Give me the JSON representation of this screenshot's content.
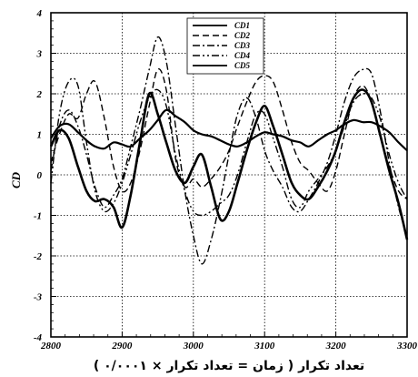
{
  "chart_data": {
    "type": "line",
    "title": "",
    "xlabel": "تعداد تکرار ( زمان = تعداد تکرار × ۰/۰۰۰۱ )",
    "ylabel": "CD",
    "xlim": [
      2800,
      3300
    ],
    "ylim": [
      -4,
      4
    ],
    "xticks": [
      "2800",
      "2900",
      "3000",
      "3100",
      "3200",
      "3300"
    ],
    "yticks": [
      "-4",
      "-3",
      "-2",
      "-1",
      "0",
      "1",
      "2",
      "3",
      "4"
    ],
    "grid": true,
    "legend_position": "top-center",
    "series": [
      {
        "name": "CD1",
        "style": "solid",
        "width": 2.2,
        "x": [
          2800,
          2812,
          2825,
          2838,
          2850,
          2862,
          2875,
          2888,
          2900,
          2912,
          2925,
          2938,
          2950,
          2962,
          2975,
          2988,
          3000,
          3012,
          3025,
          3038,
          3050,
          3062,
          3075,
          3088,
          3100,
          3112,
          3125,
          3138,
          3150,
          3162,
          3175,
          3188,
          3200,
          3212,
          3225,
          3238,
          3250,
          3262,
          3275,
          3288,
          3300
        ],
        "y": [
          0.9,
          1.2,
          1.25,
          1.05,
          0.85,
          0.7,
          0.65,
          0.8,
          0.75,
          0.7,
          0.9,
          1.1,
          1.35,
          1.6,
          1.45,
          1.3,
          1.1,
          1.0,
          0.95,
          0.85,
          0.75,
          0.7,
          0.8,
          0.95,
          1.05,
          1.0,
          0.95,
          0.85,
          0.8,
          0.7,
          0.85,
          1.0,
          1.1,
          1.25,
          1.35,
          1.3,
          1.3,
          1.2,
          1.05,
          0.8,
          0.6
        ]
      },
      {
        "name": "CD2",
        "style": "dashed",
        "width": 1.4,
        "x": [
          2800,
          2812,
          2825,
          2838,
          2850,
          2862,
          2875,
          2888,
          2900,
          2912,
          2925,
          2938,
          2950,
          2962,
          2975,
          2988,
          3000,
          3012,
          3025,
          3038,
          3050,
          3062,
          3075,
          3088,
          3100,
          3112,
          3125,
          3138,
          3150,
          3162,
          3175,
          3188,
          3200,
          3212,
          3225,
          3238,
          3250,
          3262,
          3275,
          3288,
          3300
        ],
        "y": [
          0.3,
          1.0,
          1.5,
          1.4,
          2.0,
          2.3,
          1.4,
          0.2,
          -0.4,
          -0.2,
          0.6,
          1.7,
          2.6,
          2.1,
          0.4,
          -0.3,
          -0.1,
          -0.3,
          -0.1,
          0.2,
          0.6,
          1.2,
          1.8,
          2.3,
          2.45,
          2.3,
          1.6,
          0.8,
          0.3,
          0.1,
          -0.2,
          -0.4,
          0.1,
          1.0,
          1.9,
          2.2,
          1.8,
          1.0,
          0.2,
          -0.4,
          -0.6
        ]
      },
      {
        "name": "CD3",
        "style": "dashdot",
        "width": 1.4,
        "x": [
          2800,
          2812,
          2825,
          2838,
          2850,
          2862,
          2875,
          2888,
          2900,
          2912,
          2925,
          2938,
          2950,
          2962,
          2975,
          2988,
          3000,
          3012,
          3025,
          3038,
          3050,
          3062,
          3075,
          3088,
          3100,
          3112,
          3125,
          3138,
          3150,
          3162,
          3175,
          3188,
          3200,
          3212,
          3225,
          3238,
          3250,
          3262,
          3275,
          3288,
          3300
        ],
        "y": [
          0.1,
          1.2,
          1.6,
          1.2,
          0.5,
          -0.3,
          -0.8,
          -0.5,
          -0.1,
          0.7,
          1.6,
          2.6,
          3.4,
          2.8,
          1.2,
          -0.4,
          -1.5,
          -2.2,
          -1.6,
          -0.6,
          0.5,
          1.5,
          1.9,
          1.4,
          0.6,
          0.1,
          -0.3,
          -0.8,
          -0.9,
          -0.6,
          -0.2,
          0.3,
          1.0,
          1.8,
          2.4,
          2.6,
          2.5,
          1.6,
          0.3,
          -0.8,
          -1.5
        ]
      },
      {
        "name": "CD4",
        "style": "dashdotdot",
        "width": 1.4,
        "x": [
          2800,
          2812,
          2825,
          2838,
          2850,
          2862,
          2875,
          2888,
          2900,
          2912,
          2925,
          2938,
          2950,
          2962,
          2975,
          2988,
          3000,
          3012,
          3025,
          3038,
          3050,
          3062,
          3075,
          3088,
          3100,
          3112,
          3125,
          3138,
          3150,
          3162,
          3175,
          3188,
          3200,
          3212,
          3225,
          3238,
          3250,
          3262,
          3275,
          3288,
          3300
        ],
        "y": [
          -0.2,
          1.5,
          2.3,
          2.2,
          0.8,
          -0.4,
          -0.9,
          -0.7,
          -0.2,
          0.5,
          1.3,
          1.9,
          2.1,
          1.7,
          0.5,
          -0.4,
          -0.9,
          -1.0,
          -0.9,
          -0.7,
          -0.5,
          0.0,
          0.8,
          1.5,
          1.5,
          0.9,
          0.2,
          -0.6,
          -0.8,
          -0.4,
          -0.1,
          0.2,
          0.6,
          1.2,
          1.8,
          2.0,
          1.9,
          1.4,
          0.5,
          -0.2,
          -0.6
        ]
      },
      {
        "name": "CD5",
        "style": "solid",
        "width": 2.6,
        "x": [
          2800,
          2812,
          2825,
          2838,
          2850,
          2862,
          2875,
          2888,
          2900,
          2912,
          2925,
          2938,
          2950,
          2962,
          2975,
          2988,
          3000,
          3012,
          3025,
          3038,
          3050,
          3062,
          3075,
          3088,
          3100,
          3112,
          3125,
          3138,
          3150,
          3162,
          3175,
          3188,
          3200,
          3212,
          3225,
          3238,
          3250,
          3262,
          3275,
          3288,
          3300
        ],
        "y": [
          0.7,
          1.1,
          0.9,
          0.2,
          -0.4,
          -0.65,
          -0.6,
          -0.8,
          -1.3,
          -0.5,
          0.8,
          2.0,
          1.5,
          0.8,
          0.1,
          -0.2,
          0.2,
          0.5,
          -0.3,
          -1.1,
          -0.9,
          -0.2,
          0.6,
          1.3,
          1.7,
          1.2,
          0.5,
          -0.2,
          -0.5,
          -0.6,
          -0.3,
          0.1,
          0.6,
          1.3,
          1.9,
          2.1,
          1.8,
          1.0,
          0.1,
          -0.7,
          -1.6
        ]
      }
    ]
  }
}
